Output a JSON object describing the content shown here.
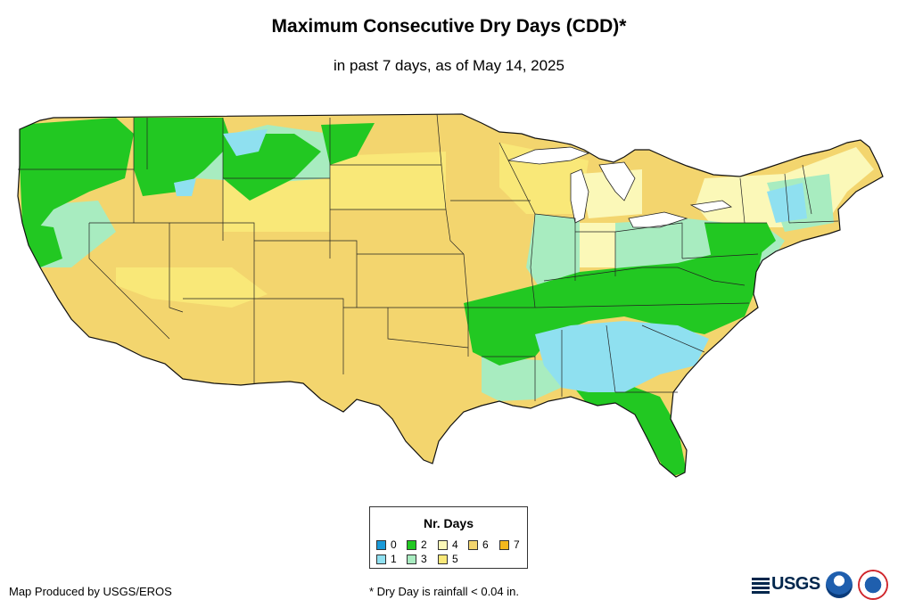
{
  "title": "Maximum Consecutive Dry Days (CDD)*",
  "subtitle": "in past 7 days, as of May 14, 2025",
  "legend": {
    "title": "Nr. Days",
    "items": [
      {
        "label": "0",
        "color": "#1a9ad8"
      },
      {
        "label": "1",
        "color": "#8fe0f0"
      },
      {
        "label": "2",
        "color": "#22c822"
      },
      {
        "label": "3",
        "color": "#a8ecc0"
      },
      {
        "label": "4",
        "color": "#fbf8b8"
      },
      {
        "label": "5",
        "color": "#f9e878"
      },
      {
        "label": "6",
        "color": "#f3d56e"
      },
      {
        "label": "7",
        "color": "#f4b81c"
      }
    ]
  },
  "footer": {
    "credit": "Map Produced by USGS/EROS",
    "note": "* Dry Day is rainfall < 0.04 in."
  },
  "logos": {
    "usgs": "USGS",
    "noaa": "NOAA"
  }
}
